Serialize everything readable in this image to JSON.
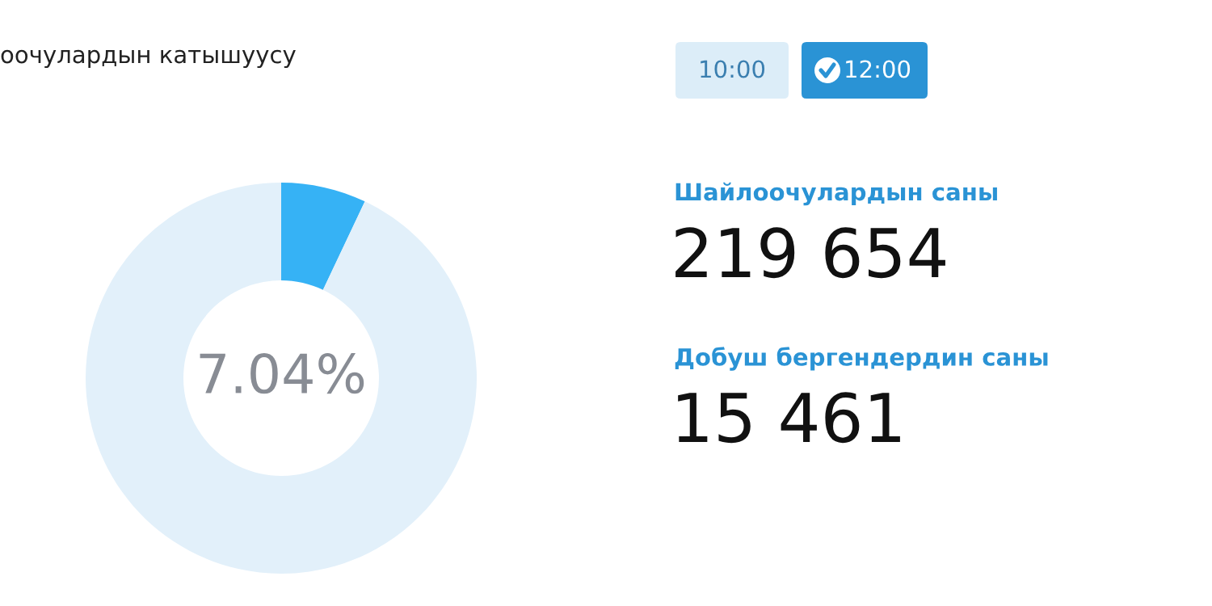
{
  "chart_data": [
    {
      "type": "donut",
      "title": "оочулардын катышуусу",
      "categories": [
        null,
        null
      ],
      "values": [
        7.04,
        92.96
      ],
      "colors": [
        "#36b2f5",
        "#e2f0fa"
      ],
      "value_labels": [
        "7.04%",
        null
      ]
    },
    {
      "type": "other",
      "annotations": [
        "10:00",
        "12:00",
        "Шайлоочулардын саны",
        "219 654",
        "Добуш бергендердин саны",
        "15 461"
      ]
    }
  ]
}
